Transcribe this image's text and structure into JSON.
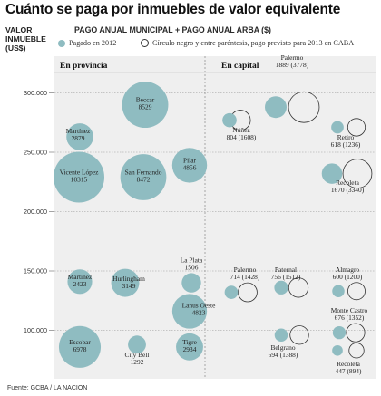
{
  "header": {
    "title": "Cuánto se paga por inmuebles de valor equivalente",
    "y_axis_head_line1": "VALOR",
    "y_axis_head_line2": "INMUEBLE",
    "y_axis_head_line3": "(US$)",
    "legend_title": "PAGO ANUAL MUNICIPAL + PAGO ANUAL ARBA ($)",
    "legend_paid": "Pagado en 2012",
    "legend_projected": "Círculo negro y entre paréntesis, pago previsto para 2013 en CABA",
    "source": "Fuente: GCBA / LA NACION"
  },
  "colors": {
    "fill": "#8fbcc1",
    "ring": "#333333",
    "grid": "#999999",
    "panel_bg": "#efefef"
  },
  "chart_data": {
    "type": "bubble",
    "ylabel": "VALOR INMUEBLE (US$)",
    "yticks": [
      "100.000",
      "150.000",
      "200.000",
      "250.000",
      "300.000"
    ],
    "ylim": [
      85000,
      320000
    ],
    "panels": [
      "En provincia",
      "En capital"
    ],
    "provincia": [
      {
        "name": "Beccar",
        "value_text": "8529",
        "value": 8529,
        "y": 290000
      },
      {
        "name": "Martínez",
        "value_text": "2879",
        "value": 2879,
        "y": 263000
      },
      {
        "name": "Pilar",
        "value_text": "4856",
        "value": 4856,
        "y": 239000
      },
      {
        "name": "Vicente López",
        "value_text": "10315",
        "value": 10315,
        "y": 229000
      },
      {
        "name": "San Fernando",
        "value_text": "8472",
        "value": 8472,
        "y": 229000
      },
      {
        "name": "La Plata",
        "value_text": "1506",
        "value": 1506,
        "y": 140000
      },
      {
        "name": "Martínez",
        "value_text": "2423",
        "value": 2423,
        "y": 141000
      },
      {
        "name": "Hurlingham",
        "value_text": "3149",
        "value": 3149,
        "y": 140000
      },
      {
        "name": "Lanus Oeste",
        "value_text": "4823",
        "value": 4823,
        "y": 116000
      },
      {
        "name": "Escobar",
        "value_text": "6978",
        "value": 6978,
        "y": 86000
      },
      {
        "name": "City Bell",
        "value_text": "1292",
        "value": 1292,
        "y": 88000
      },
      {
        "name": "Tigre",
        "value_text": "2934",
        "value": 2934,
        "y": 86000
      }
    ],
    "capital": [
      {
        "name": "Palermo",
        "paid_text": "1889",
        "projected_text": "(3778)",
        "paid": 1889,
        "projected": 3778,
        "y": 288000
      },
      {
        "name": "Núñez",
        "paid_text": "804",
        "projected_text": "(1608)",
        "paid": 804,
        "projected": 1608,
        "y": 277000
      },
      {
        "name": "Retiro",
        "paid_text": "618",
        "projected_text": "(1236)",
        "paid": 618,
        "projected": 1236,
        "y": 271000
      },
      {
        "name": "Recoleta",
        "paid_text": "1670",
        "projected_text": "(3340)",
        "paid": 1670,
        "projected": 3340,
        "y": 232000
      },
      {
        "name": "Palermo",
        "paid_text": "714",
        "projected_text": "(1428)",
        "paid": 714,
        "projected": 1428,
        "y": 132000
      },
      {
        "name": "Paternal",
        "paid_text": "756",
        "projected_text": "(1512)",
        "paid": 756,
        "projected": 1512,
        "y": 136000
      },
      {
        "name": "Almagro",
        "paid_text": "600",
        "projected_text": "(1200)",
        "paid": 600,
        "projected": 1200,
        "y": 133000
      },
      {
        "name": "Monte Castro",
        "paid_text": "676",
        "projected_text": "(1352)",
        "paid": 676,
        "projected": 1352,
        "y": 98000
      },
      {
        "name": "Belgrano",
        "paid_text": "694",
        "projected_text": "(1388)",
        "paid": 694,
        "projected": 1388,
        "y": 96000
      },
      {
        "name": "Recoleta",
        "paid_text": "447",
        "projected_text": "(894)",
        "paid": 447,
        "projected": 894,
        "y": 83000
      }
    ]
  }
}
